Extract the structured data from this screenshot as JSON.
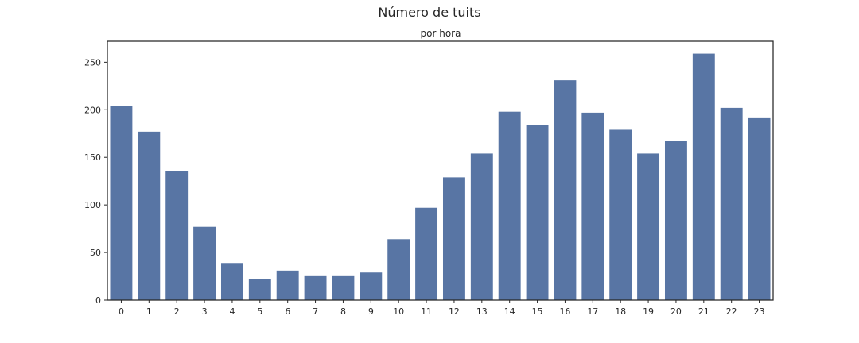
{
  "chart_data": {
    "type": "bar",
    "title": "Número de tuits",
    "subtitle": "por hora",
    "xlabel": "",
    "ylabel": "",
    "categories": [
      "0",
      "1",
      "2",
      "3",
      "4",
      "5",
      "6",
      "7",
      "8",
      "9",
      "10",
      "11",
      "12",
      "13",
      "14",
      "15",
      "16",
      "17",
      "18",
      "19",
      "20",
      "21",
      "22",
      "23"
    ],
    "values": [
      204,
      177,
      136,
      77,
      39,
      22,
      31,
      26,
      26,
      29,
      64,
      97,
      129,
      154,
      198,
      184,
      231,
      197,
      179,
      154,
      167,
      259,
      202,
      192
    ],
    "ylim": [
      0,
      272
    ],
    "yticks": [
      0,
      50,
      100,
      150,
      200,
      250
    ],
    "grid": false,
    "legend": "none",
    "bar_color": "#5875a4",
    "axis_color": "#262626"
  }
}
